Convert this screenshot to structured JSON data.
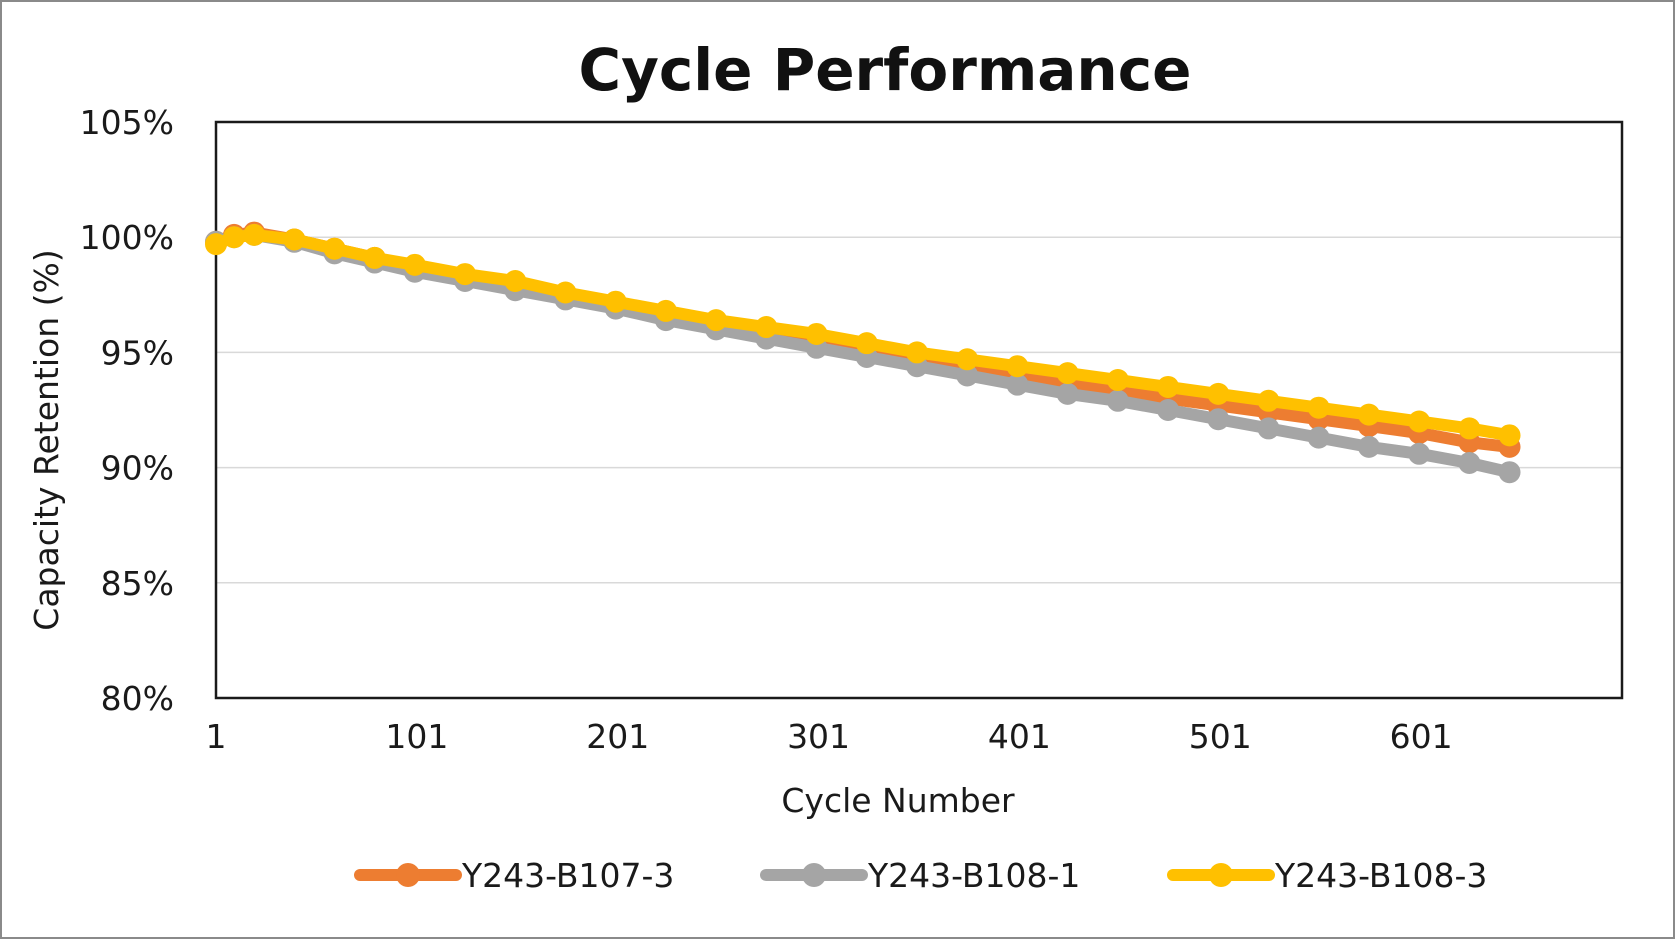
{
  "chart_data": {
    "type": "line",
    "title": "Cycle Performance",
    "xlabel": "Cycle Number",
    "ylabel": "Capacity Retention (%)",
    "x_tick_labels": [
      "1",
      "101",
      "201",
      "301",
      "401",
      "501",
      "601"
    ],
    "y_tick_labels": [
      "80%",
      "85%",
      "90%",
      "95%",
      "100%",
      "105%"
    ],
    "xlim": [
      1,
      701
    ],
    "ylim": [
      80,
      105
    ],
    "grid": true,
    "legend_position": "bottom",
    "series": [
      {
        "name": "Y243-B107-3",
        "color": "#ED7D31",
        "x": [
          1,
          10,
          20,
          40,
          60,
          80,
          100,
          125,
          150,
          175,
          200,
          225,
          250,
          275,
          300,
          325,
          350,
          375,
          400,
          425,
          450,
          475,
          500,
          525,
          550,
          575,
          600,
          625,
          645
        ],
        "y": [
          99.8,
          100.1,
          100.2,
          99.9,
          99.5,
          99.1,
          98.7,
          98.3,
          97.9,
          97.5,
          97.1,
          96.7,
          96.3,
          95.9,
          95.5,
          95.1,
          94.7,
          94.3,
          93.9,
          93.6,
          93.3,
          93.0,
          92.7,
          92.4,
          92.1,
          91.8,
          91.5,
          91.1,
          90.9
        ]
      },
      {
        "name": "Y243-B108-1",
        "color": "#A5A5A5",
        "x": [
          1,
          10,
          20,
          40,
          60,
          80,
          100,
          125,
          150,
          175,
          200,
          225,
          250,
          275,
          300,
          325,
          350,
          375,
          400,
          425,
          450,
          475,
          500,
          525,
          550,
          575,
          600,
          625,
          645
        ],
        "y": [
          99.8,
          100.0,
          100.1,
          99.8,
          99.3,
          98.9,
          98.5,
          98.1,
          97.7,
          97.3,
          96.9,
          96.4,
          96.0,
          95.6,
          95.2,
          94.8,
          94.4,
          94.0,
          93.6,
          93.2,
          92.9,
          92.5,
          92.1,
          91.7,
          91.3,
          90.9,
          90.6,
          90.2,
          89.8
        ]
      },
      {
        "name": "Y243-B108-3",
        "color": "#FFC000",
        "x": [
          1,
          10,
          20,
          40,
          60,
          80,
          100,
          125,
          150,
          175,
          200,
          225,
          250,
          275,
          300,
          325,
          350,
          375,
          400,
          425,
          450,
          475,
          500,
          525,
          550,
          575,
          600,
          625,
          645
        ],
        "y": [
          99.7,
          100.0,
          100.1,
          99.9,
          99.5,
          99.1,
          98.8,
          98.4,
          98.1,
          97.6,
          97.2,
          96.8,
          96.4,
          96.1,
          95.8,
          95.4,
          95.0,
          94.7,
          94.4,
          94.1,
          93.8,
          93.5,
          93.2,
          92.9,
          92.6,
          92.3,
          92.0,
          91.7,
          91.4
        ]
      }
    ]
  }
}
